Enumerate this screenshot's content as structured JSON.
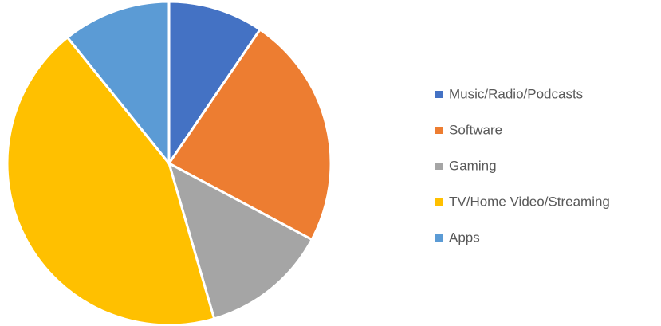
{
  "chart_data": {
    "type": "pie",
    "categories": [
      "Music/Radio/Podcasts",
      "Software",
      "Gaming",
      "TV/Home Video/Streaming",
      "Apps"
    ],
    "values": [
      9.5,
      23.3,
      12.7,
      43.7,
      10.8
    ],
    "colors": [
      "#4472c4",
      "#ed7d31",
      "#a5a5a5",
      "#ffc000",
      "#5b9bd5"
    ],
    "legend": "right"
  }
}
